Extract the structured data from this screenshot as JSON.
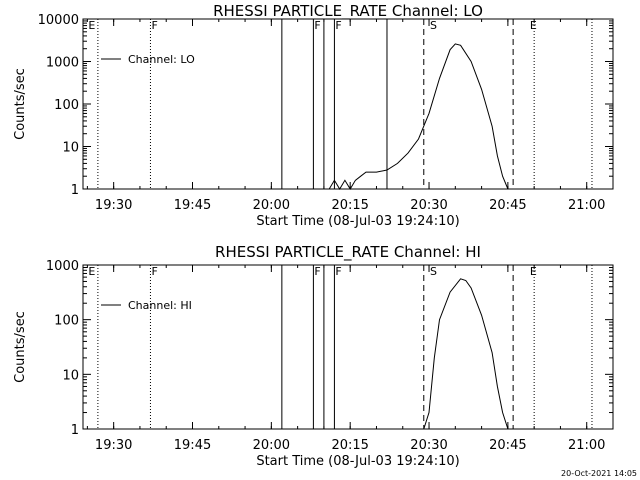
{
  "chart_data": [
    {
      "type": "line",
      "title": "RHESSI PARTICLE_RATE Channel: LO",
      "xlabel": "Start Time (08-Jul-03 19:24:10)",
      "ylabel": "Counts/sec",
      "y_scale": "log",
      "ylim": [
        1,
        10000
      ],
      "xlim": [
        "19:24:10",
        "21:05:00"
      ],
      "x_ticks": [
        "19:30",
        "19:45",
        "20:00",
        "20:15",
        "20:30",
        "20:45",
        "21:00"
      ],
      "y_ticks": [
        "1",
        "10",
        "100",
        "1000",
        "10000"
      ],
      "legend": {
        "label": "Channel: LO",
        "position": "top-left"
      },
      "series": [
        {
          "name": "Channel: LO",
          "x": [
            "20:11",
            "20:12",
            "20:13",
            "20:14",
            "20:15",
            "20:16",
            "20:17",
            "20:18",
            "20:20",
            "20:22",
            "20:24",
            "20:26",
            "20:28",
            "20:30",
            "20:32",
            "20:34",
            "20:35",
            "20:36",
            "20:38",
            "20:40",
            "20:42",
            "20:43",
            "20:44",
            "20:45"
          ],
          "values": [
            1,
            1.6,
            1,
            1.6,
            1,
            1.6,
            2,
            2.5,
            2.5,
            2.8,
            4,
            7,
            15,
            60,
            400,
            1900,
            2600,
            2400,
            1000,
            220,
            30,
            6,
            2,
            1
          ]
        }
      ],
      "vlines_solid": [
        "20:02",
        "20:08",
        "20:10",
        "20:12",
        "20:22"
      ],
      "vlines_dashed": [
        "20:29",
        "20:46"
      ],
      "vlines_dotted": [
        "19:27",
        "19:37",
        "20:50",
        "21:01"
      ],
      "markers": [
        {
          "label": "E",
          "x": "19:25"
        },
        {
          "label": "F",
          "x": "19:37"
        },
        {
          "label": "F",
          "x": "20:08"
        },
        {
          "label": "F",
          "x": "20:12"
        },
        {
          "label": "S",
          "x": "20:30"
        },
        {
          "label": "E",
          "x": "20:49"
        }
      ]
    },
    {
      "type": "line",
      "title": "RHESSI PARTICLE_RATE Channel: HI",
      "xlabel": "Start Time (08-Jul-03 19:24:10)",
      "ylabel": "Counts/sec",
      "y_scale": "log",
      "ylim": [
        1,
        1000
      ],
      "xlim": [
        "19:24:10",
        "21:05:00"
      ],
      "x_ticks": [
        "19:30",
        "19:45",
        "20:00",
        "20:15",
        "20:30",
        "20:45",
        "21:00"
      ],
      "y_ticks": [
        "1",
        "10",
        "100",
        "1000"
      ],
      "legend": {
        "label": "Channel: HI",
        "position": "top-left"
      },
      "series": [
        {
          "name": "Channel: HI",
          "x": [
            "20:29",
            "20:30",
            "20:31",
            "20:32",
            "20:34",
            "20:36",
            "20:37",
            "20:38",
            "20:40",
            "20:42",
            "20:43",
            "20:44",
            "20:45"
          ],
          "values": [
            1,
            2,
            20,
            100,
            320,
            560,
            520,
            380,
            120,
            25,
            6,
            2,
            1
          ]
        }
      ],
      "vlines_solid": [
        "20:02",
        "20:08",
        "20:10",
        "20:12"
      ],
      "vlines_dashed": [
        "20:29",
        "20:46"
      ],
      "vlines_dotted": [
        "19:27",
        "19:37",
        "20:50",
        "21:01"
      ],
      "markers": [
        {
          "label": "E",
          "x": "19:25"
        },
        {
          "label": "F",
          "x": "19:37"
        },
        {
          "label": "F",
          "x": "20:08"
        },
        {
          "label": "F",
          "x": "20:12"
        },
        {
          "label": "S",
          "x": "20:30"
        },
        {
          "label": "E",
          "x": "20:49"
        }
      ]
    }
  ],
  "footer": {
    "timestamp": "20-Oct-2021 14:05"
  }
}
